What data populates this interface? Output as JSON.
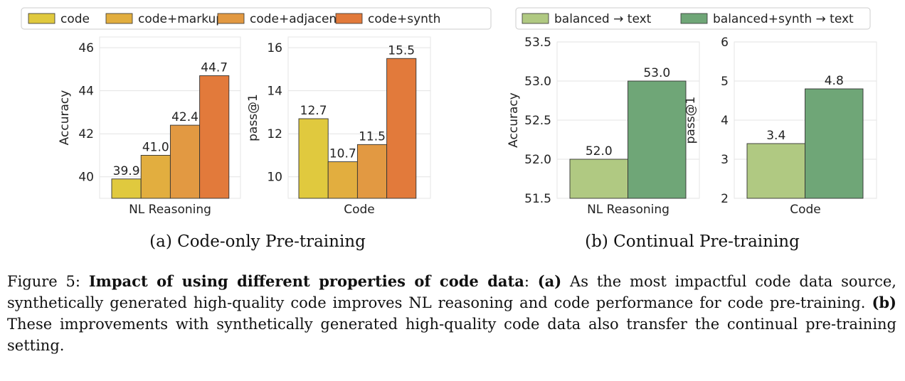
{
  "chart_data": [
    {
      "type": "bar",
      "panel": "a",
      "subtitle": "(a) Code-only Pre-training",
      "legend": [
        "code",
        "code+markup",
        "code+adjacent",
        "code+synth"
      ],
      "colors": [
        "#e0c93e",
        "#e2ae3f",
        "#e29942",
        "#e27a3b"
      ],
      "legend_placement": "top",
      "grid": true,
      "subplots": [
        {
          "category": "NL Reasoning",
          "ylabel": "Accuracy",
          "ylim": [
            39,
            46.5
          ],
          "yticks": [
            "40",
            "42",
            "44",
            "46"
          ],
          "values": [
            39.9,
            41.0,
            42.4,
            44.7
          ],
          "labels": [
            "39.9",
            "41.0",
            "42.4",
            "44.7"
          ]
        },
        {
          "category": "Code",
          "ylabel": "pass@1",
          "ylim": [
            9,
            16.5
          ],
          "yticks": [
            "10",
            "12",
            "14",
            "16"
          ],
          "values": [
            12.7,
            10.7,
            11.5,
            15.5
          ],
          "labels": [
            "12.7",
            "10.7",
            "11.5",
            "15.5"
          ]
        }
      ]
    },
    {
      "type": "bar",
      "panel": "b",
      "subtitle": "(b) Continual Pre-training",
      "legend": [
        "balanced → text",
        "balanced+synth → text"
      ],
      "colors": [
        "#b0c982",
        "#6fa677"
      ],
      "legend_placement": "top",
      "grid": true,
      "subplots": [
        {
          "category": "NL Reasoning",
          "ylabel": "Accuracy",
          "ylim": [
            51.5,
            53.5
          ],
          "yticks": [
            "51.5",
            "52.0",
            "52.5",
            "53.0",
            "53.5"
          ],
          "values": [
            52.0,
            53.0
          ],
          "labels": [
            "52.0",
            "53.0"
          ]
        },
        {
          "category": "Code",
          "ylabel": "pass@1",
          "ylim": [
            2,
            6
          ],
          "yticks": [
            "2",
            "3",
            "4",
            "5",
            "6"
          ],
          "values": [
            3.4,
            4.8
          ],
          "labels": [
            "3.4",
            "4.8"
          ]
        }
      ]
    }
  ],
  "caption": {
    "prefix": "Figure 5: ",
    "bold_title": "Impact of using different properties of code data",
    "colon": ": ",
    "a_tag": "(a)",
    "a_text": " As the most impactful code data source, synthetically generated high-quality code improves NL reasoning and code performance for code pre-training. ",
    "b_tag": "(b)",
    "b_text": " These improvements with synthetically generated high-quality code data also transfer the continual pre-training setting."
  }
}
